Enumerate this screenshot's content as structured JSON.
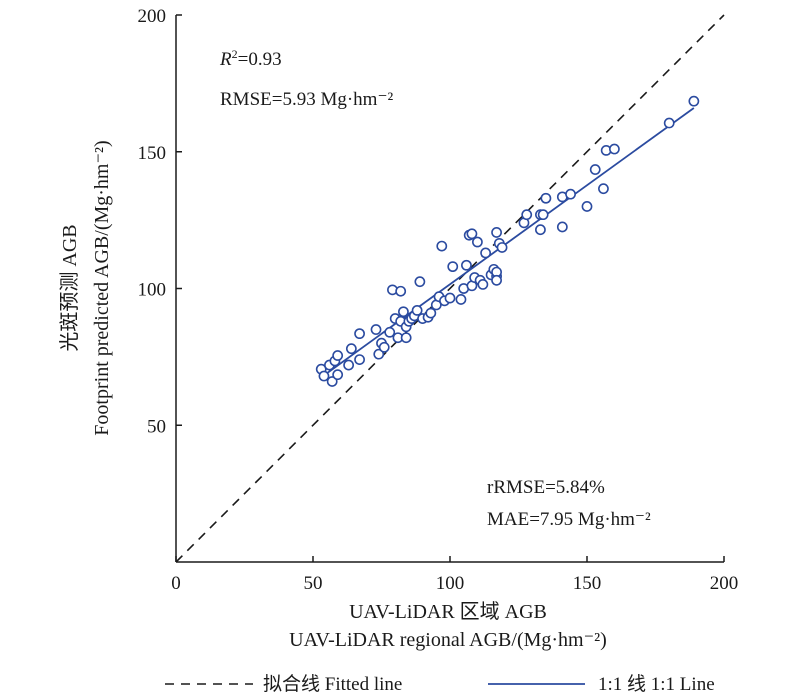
{
  "chart_data": {
    "type": "scatter",
    "xlabel": [
      "UAV-LiDAR 区域 AGB",
      "UAV-LiDAR regional AGB/(Mg·hm⁻²)"
    ],
    "ylabel": [
      "光斑预测 AGB",
      "Footprint predicted AGB/(Mg·hm⁻²)"
    ],
    "xlim": [
      0,
      200
    ],
    "ylim": [
      0,
      200
    ],
    "xticks": [
      "0",
      "50",
      "100",
      "150",
      "200"
    ],
    "yticks": [
      "50",
      "100",
      "150",
      "200"
    ],
    "grid": false,
    "stats": {
      "r2_label": "R",
      "r2_sup": "2",
      "r2_value": "=0.93",
      "rmse": "RMSE=5.93 Mg·hm⁻²",
      "rrmse": "rRMSE=5.84%",
      "mae": "MAE=7.95 Mg·hm⁻²"
    },
    "legend": {
      "placement": "bottom",
      "items": [
        {
          "label": "拟合线 Fitted line",
          "style": "dashed",
          "color": "#1a1a1a"
        },
        {
          "label": "1:1 线 1:1 Line",
          "style": "solid",
          "color": "#2b4ba0"
        }
      ]
    },
    "colors": {
      "points": "#2b4ba0",
      "fit": "#2b4ba0",
      "identity": "#1a1a1a"
    },
    "fit_line": {
      "x": [
        53,
        189
      ],
      "y": [
        67.5,
        166
      ]
    },
    "identity_line": {
      "x": [
        0,
        200
      ],
      "y": [
        0,
        200
      ]
    },
    "points": [
      {
        "x": 53,
        "y": 70.5
      },
      {
        "x": 54,
        "y": 68
      },
      {
        "x": 56,
        "y": 72
      },
      {
        "x": 57,
        "y": 66
      },
      {
        "x": 58,
        "y": 73.5
      },
      {
        "x": 59,
        "y": 68.5
      },
      {
        "x": 59,
        "y": 75.5
      },
      {
        "x": 63,
        "y": 72
      },
      {
        "x": 64,
        "y": 78
      },
      {
        "x": 67,
        "y": 83.5
      },
      {
        "x": 67,
        "y": 74
      },
      {
        "x": 73,
        "y": 85
      },
      {
        "x": 74,
        "y": 76
      },
      {
        "x": 75,
        "y": 80
      },
      {
        "x": 76,
        "y": 78.5
      },
      {
        "x": 78,
        "y": 84
      },
      {
        "x": 79,
        "y": 99.5
      },
      {
        "x": 80,
        "y": 89
      },
      {
        "x": 81,
        "y": 82
      },
      {
        "x": 82,
        "y": 99
      },
      {
        "x": 82,
        "y": 88
      },
      {
        "x": 83,
        "y": 91.5
      },
      {
        "x": 84,
        "y": 86
      },
      {
        "x": 84,
        "y": 82
      },
      {
        "x": 85,
        "y": 88
      },
      {
        "x": 86,
        "y": 89
      },
      {
        "x": 87,
        "y": 90
      },
      {
        "x": 88,
        "y": 92
      },
      {
        "x": 89,
        "y": 102.5
      },
      {
        "x": 90,
        "y": 89
      },
      {
        "x": 92,
        "y": 89.5
      },
      {
        "x": 93,
        "y": 91
      },
      {
        "x": 95,
        "y": 94
      },
      {
        "x": 96,
        "y": 97
      },
      {
        "x": 97,
        "y": 115.5
      },
      {
        "x": 98,
        "y": 95.5
      },
      {
        "x": 100,
        "y": 96.5
      },
      {
        "x": 101,
        "y": 108
      },
      {
        "x": 104,
        "y": 96
      },
      {
        "x": 105,
        "y": 100
      },
      {
        "x": 106,
        "y": 108.5
      },
      {
        "x": 107,
        "y": 119.5
      },
      {
        "x": 108,
        "y": 120
      },
      {
        "x": 108,
        "y": 101
      },
      {
        "x": 109,
        "y": 104
      },
      {
        "x": 110,
        "y": 117
      },
      {
        "x": 111,
        "y": 103
      },
      {
        "x": 112,
        "y": 101.5
      },
      {
        "x": 113,
        "y": 113
      },
      {
        "x": 115,
        "y": 105
      },
      {
        "x": 116,
        "y": 107
      },
      {
        "x": 117,
        "y": 104.5
      },
      {
        "x": 117,
        "y": 106
      },
      {
        "x": 117,
        "y": 103
      },
      {
        "x": 117,
        "y": 120.5
      },
      {
        "x": 118,
        "y": 116.5
      },
      {
        "x": 119,
        "y": 115
      },
      {
        "x": 127,
        "y": 124
      },
      {
        "x": 128,
        "y": 127
      },
      {
        "x": 133,
        "y": 121.5
      },
      {
        "x": 133,
        "y": 127
      },
      {
        "x": 134,
        "y": 127
      },
      {
        "x": 135,
        "y": 133
      },
      {
        "x": 141,
        "y": 133.5
      },
      {
        "x": 141,
        "y": 122.5
      },
      {
        "x": 144,
        "y": 134.5
      },
      {
        "x": 150,
        "y": 130
      },
      {
        "x": 153,
        "y": 143.5
      },
      {
        "x": 156,
        "y": 136.5
      },
      {
        "x": 157,
        "y": 150.5
      },
      {
        "x": 160,
        "y": 151
      },
      {
        "x": 180,
        "y": 160.5
      },
      {
        "x": 189,
        "y": 168.5
      }
    ]
  }
}
